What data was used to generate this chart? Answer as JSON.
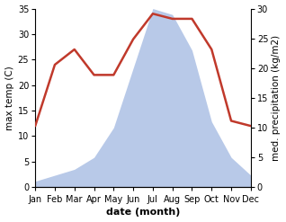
{
  "months": [
    "Jan",
    "Feb",
    "Mar",
    "Apr",
    "May",
    "Jun",
    "Jul",
    "Aug",
    "Sep",
    "Oct",
    "Nov",
    "Dec"
  ],
  "temperature": [
    12,
    24,
    27,
    22,
    22,
    29,
    34,
    33,
    33,
    27,
    13,
    12
  ],
  "precipitation": [
    1,
    2,
    3,
    5,
    10,
    20,
    30,
    29,
    23,
    11,
    5,
    2
  ],
  "temp_color": "#c0392b",
  "precip_color": "#b8c9e8",
  "precip_edge_color": "#b8c9e8",
  "temp_ylim": [
    0,
    35
  ],
  "precip_ylim": [
    0,
    30
  ],
  "temp_yticks": [
    0,
    5,
    10,
    15,
    20,
    25,
    30,
    35
  ],
  "precip_yticks": [
    0,
    5,
    10,
    15,
    20,
    25,
    30
  ],
  "xlabel": "date (month)",
  "ylabel_left": "max temp (C)",
  "ylabel_right": "med. precipitation (kg/m2)",
  "background_color": "#ffffff",
  "line_width": 1.8,
  "tick_label_size": 7,
  "axis_label_size": 7.5,
  "xlabel_size": 8
}
